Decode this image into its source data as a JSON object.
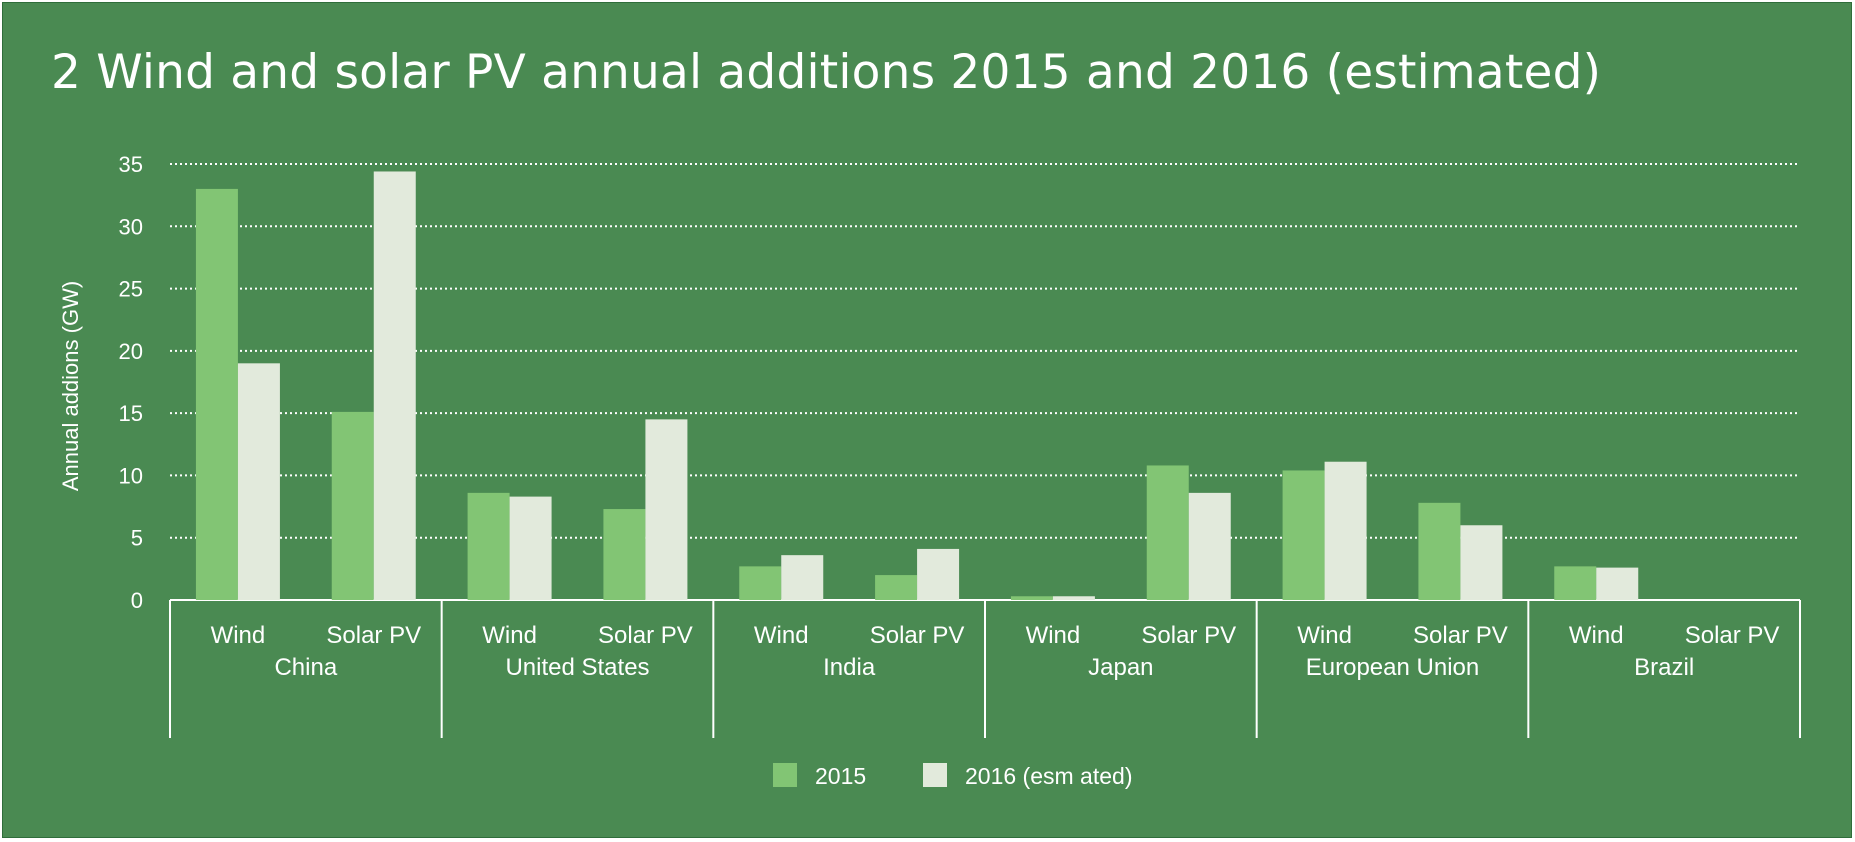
{
  "chart_data": {
    "type": "bar",
    "title": "2 Wind and solar PV annual additions 2015 and 2016 (estimated)",
    "ylabel": "Annual addions (GW)",
    "ylim": [
      0,
      35
    ],
    "yticks": [
      0,
      5,
      10,
      15,
      20,
      25,
      30,
      35
    ],
    "grid": true,
    "legend_position": "bottom",
    "groups": [
      {
        "name": "China",
        "categories": [
          "Wind",
          "Solar PV"
        ]
      },
      {
        "name": "United States",
        "categories": [
          "Wind",
          "Solar PV"
        ]
      },
      {
        "name": "India",
        "categories": [
          "Wind",
          "Solar PV"
        ]
      },
      {
        "name": "Japan",
        "categories": [
          "Wind",
          "Solar PV"
        ]
      },
      {
        "name": "European Union",
        "categories": [
          "Wind",
          "Solar PV"
        ]
      },
      {
        "name": "Brazil",
        "categories": [
          "Wind",
          "Solar PV"
        ]
      }
    ],
    "series": [
      {
        "name": "2015",
        "color": "#82c574",
        "values": [
          33,
          15.1,
          8.6,
          7.3,
          2.7,
          2.0,
          0.3,
          10.8,
          10.4,
          7.8,
          2.7,
          0
        ]
      },
      {
        "name": "2016 (esm ated)",
        "color": "#e2eadc",
        "values": [
          19,
          34.4,
          8.3,
          14.5,
          3.6,
          4.1,
          0.3,
          8.6,
          11.1,
          6.0,
          2.6,
          0
        ]
      }
    ]
  },
  "colors": {
    "background": "#4a8a52",
    "gridline": "#ffffff",
    "text": "#ffffff"
  }
}
